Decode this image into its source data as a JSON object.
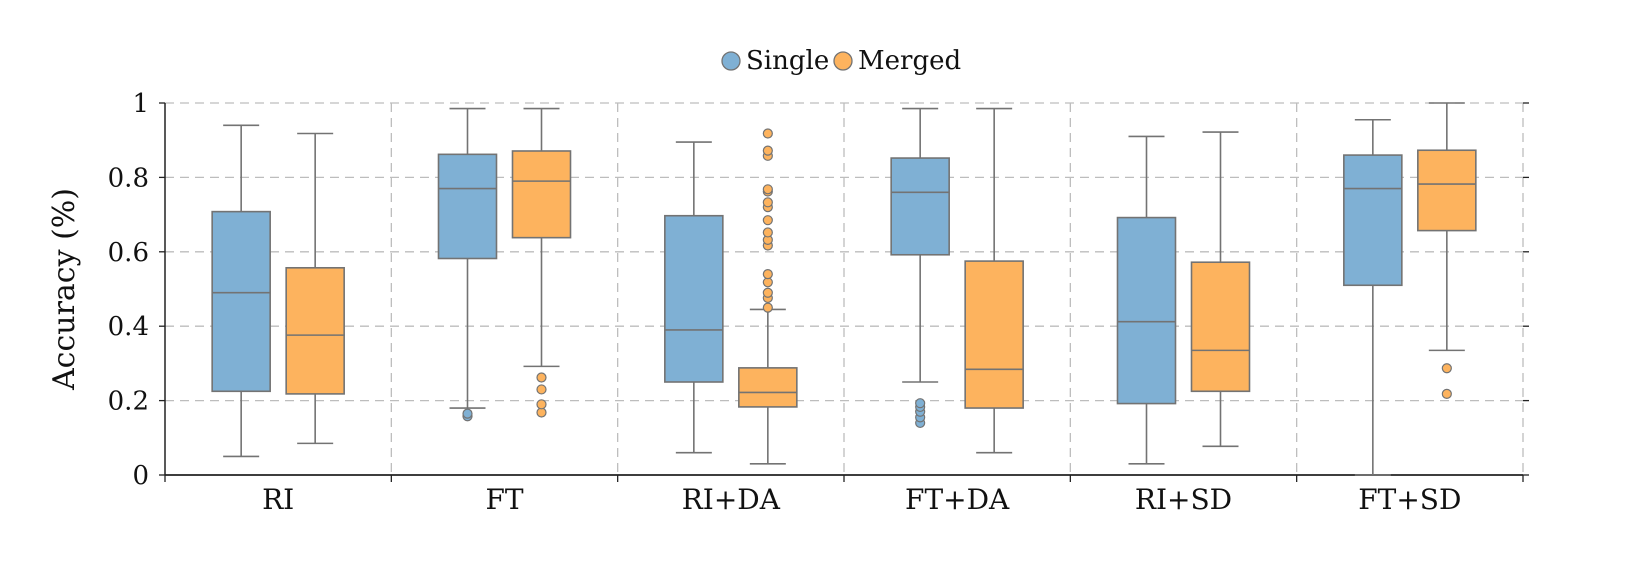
{
  "chart_data": {
    "type": "box",
    "ylabel": "Accuracy (%)",
    "ylim": [
      0,
      1
    ],
    "yticks": [
      0,
      0.2,
      0.4,
      0.6,
      0.8,
      1
    ],
    "ytick_labels": [
      "0",
      "0.2",
      "0.4",
      "0.6",
      "0.8",
      "1"
    ],
    "grid": true,
    "legend_position": "top-center",
    "categories": [
      "RI",
      "FT",
      "RI+DA",
      "FT+DA",
      "RI+SD",
      "FT+SD"
    ],
    "series": [
      {
        "name": "Single",
        "color": "#7fb0d4",
        "boxes": [
          {
            "min": 0.05,
            "q1": 0.225,
            "median": 0.49,
            "q3": 0.708,
            "max": 0.94,
            "outliers": []
          },
          {
            "min": 0.18,
            "q1": 0.582,
            "median": 0.77,
            "q3": 0.862,
            "max": 0.985,
            "outliers": [
              0.158,
              0.165
            ]
          },
          {
            "min": 0.06,
            "q1": 0.25,
            "median": 0.39,
            "q3": 0.697,
            "max": 0.895,
            "outliers": []
          },
          {
            "min": 0.25,
            "q1": 0.592,
            "median": 0.76,
            "q3": 0.852,
            "max": 0.985,
            "outliers": [
              0.14,
              0.155,
              0.17,
              0.183,
              0.193
            ]
          },
          {
            "min": 0.03,
            "q1": 0.192,
            "median": 0.412,
            "q3": 0.692,
            "max": 0.91,
            "outliers": []
          },
          {
            "min": 0.0,
            "q1": 0.51,
            "median": 0.77,
            "q3": 0.86,
            "max": 0.955,
            "outliers": []
          }
        ]
      },
      {
        "name": "Merged",
        "color": "#fdb35e",
        "boxes": [
          {
            "min": 0.085,
            "q1": 0.218,
            "median": 0.376,
            "q3": 0.557,
            "max": 0.918,
            "outliers": []
          },
          {
            "min": 0.292,
            "q1": 0.638,
            "median": 0.79,
            "q3": 0.871,
            "max": 0.985,
            "outliers": [
              0.168,
              0.19,
              0.23,
              0.262
            ]
          },
          {
            "min": 0.03,
            "q1": 0.183,
            "median": 0.222,
            "q3": 0.288,
            "max": 0.445,
            "outliers": [
              0.45,
              0.476,
              0.49,
              0.518,
              0.54,
              0.617,
              0.632,
              0.652,
              0.685,
              0.72,
              0.733,
              0.762,
              0.768,
              0.858,
              0.872,
              0.918
            ]
          },
          {
            "min": 0.06,
            "q1": 0.18,
            "median": 0.284,
            "q3": 0.575,
            "max": 0.985,
            "outliers": []
          },
          {
            "min": 0.077,
            "q1": 0.225,
            "median": 0.335,
            "q3": 0.572,
            "max": 0.922,
            "outliers": []
          },
          {
            "min": 0.335,
            "q1": 0.657,
            "median": 0.782,
            "q3": 0.873,
            "max": 1.0,
            "outliers": [
              0.218,
              0.287
            ]
          }
        ]
      }
    ]
  }
}
